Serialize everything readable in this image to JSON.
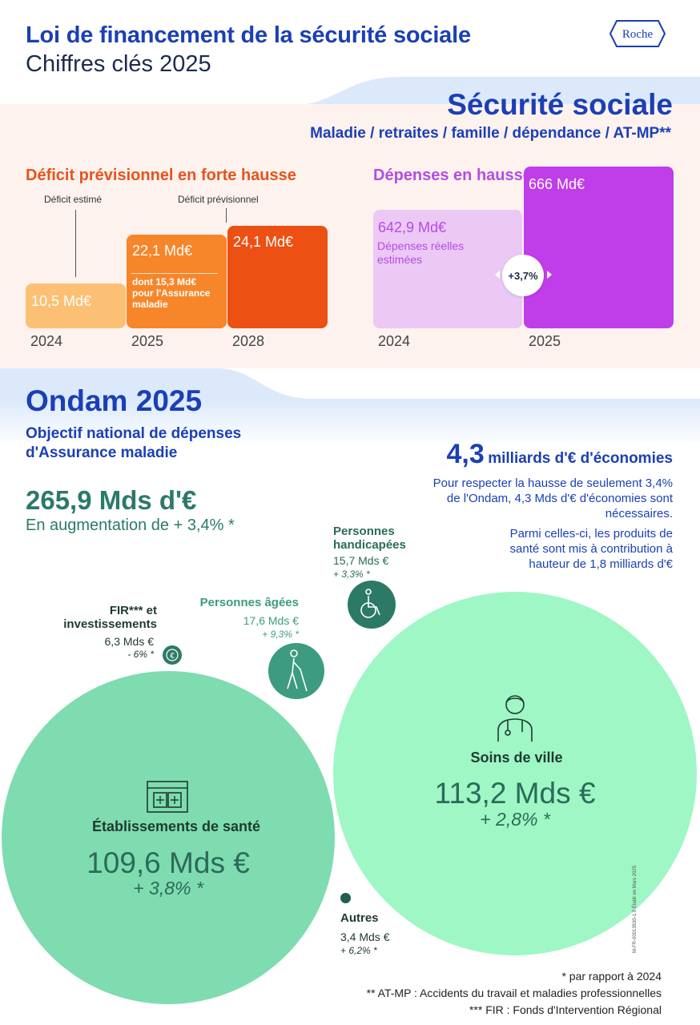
{
  "header": {
    "title": "Loi de financement de la sécurité sociale",
    "subtitle": "Chiffres clés 2025",
    "logo_text": "Roche"
  },
  "secu": {
    "title": "Sécurité sociale",
    "subtitle": "Maladie / retraites / famille / dépendance / AT-MP**"
  },
  "deficit": {
    "title": "Déficit prévisionnel en forte hausse",
    "label_estime": "Déficit estimé",
    "label_previsionnel": "Déficit prévisionnel",
    "bars": [
      {
        "year": "2024",
        "value": "10,5 Md€",
        "amount": 10.5,
        "color": "#fcc074"
      },
      {
        "year": "2025",
        "value": "22,1 Md€",
        "amount": 22.1,
        "color": "#f7862a",
        "note": "dont 15,3 Md€ pour l'Assurance maladie"
      },
      {
        "year": "2028",
        "value": "24,1 Md€",
        "amount": 24.1,
        "color": "#ec5013"
      }
    ]
  },
  "depenses": {
    "title": "Dépenses en hausses",
    "bars": [
      {
        "year": "2024",
        "value": "642,9 Md€",
        "amount": 642.9,
        "note": "Dépenses réelles estimées",
        "color": "#ecc8f5"
      },
      {
        "year": "2025",
        "value": "666 Md€",
        "amount": 666,
        "color": "#bf3ee9"
      }
    ],
    "growth": "+3,7%"
  },
  "ondam": {
    "title": "Ondam 2025",
    "subtitle": "Objectif national de dépenses d'Assurance maladie",
    "amount": "265,9 Mds d'€",
    "augmentation": "En augmentation de + 3,4% *"
  },
  "economies": {
    "number": "4,3",
    "label": "milliards d'€ d'économies",
    "p1": "Pour respecter la hausse de seulement 3,4% de l'Ondam, 4,3 Mds d'€ d'économies sont nécessaires.",
    "p2": "Parmi celles-ci, les produits de santé sont mis à contribution à hauteur de 1,8 milliards d'€"
  },
  "categories": {
    "ville": {
      "label": "Soins de ville",
      "amount": "113,2 Mds €",
      "pct": "+ 2,8% *",
      "icon": "doctor-icon"
    },
    "etab": {
      "label": "Établissements de santé",
      "amount": "109,6 Mds €",
      "pct": "+ 3,8% *",
      "icon": "hospital-icon"
    },
    "handi": {
      "label": "Personnes handicapées",
      "amount": "15,7 Mds €",
      "pct": "+ 3,3% *",
      "icon": "wheelchair-icon"
    },
    "agees": {
      "label": "Personnes âgées",
      "amount": "17,6 Mds €",
      "pct": "+ 9,3% *",
      "icon": "elderly-person-icon"
    },
    "fir": {
      "label": "FIR*** et investissements",
      "amount": "6,3 Mds €",
      "pct": "- 6% *",
      "icon": "euro-icon"
    },
    "autres": {
      "label": "Autres",
      "amount": "3,4 Mds €",
      "pct": "+ 6,2% *"
    }
  },
  "footnotes": {
    "f1": "* par rapport à 2024",
    "f2": "** AT-MP : Accidents du travail et maladies professionnelles",
    "f3": "*** FIR : Fonds d'Intervention Régional",
    "side": "M-FR-00013530-1.0 Établi en Mars 2025"
  }
}
